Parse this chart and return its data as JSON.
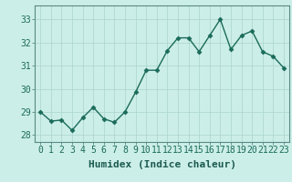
{
  "x": [
    0,
    1,
    2,
    3,
    4,
    5,
    6,
    7,
    8,
    9,
    10,
    11,
    12,
    13,
    14,
    15,
    16,
    17,
    18,
    19,
    20,
    21,
    22,
    23
  ],
  "y": [
    29.0,
    28.6,
    28.65,
    28.2,
    28.75,
    29.2,
    28.7,
    28.55,
    29.0,
    29.85,
    30.8,
    30.8,
    31.65,
    32.2,
    32.2,
    31.6,
    32.3,
    33.0,
    31.7,
    32.3,
    32.5,
    31.6,
    31.4,
    30.9
  ],
  "line_color": "#1a6b5a",
  "marker": "D",
  "marker_size": 2.5,
  "bg_color": "#cceee8",
  "plot_bg_color": "#cceee8",
  "grid_color": "#aad4ce",
  "xlabel": "Humidex (Indice chaleur)",
  "xlabel_fontsize": 8,
  "tick_fontsize": 7,
  "ylim": [
    27.7,
    33.6
  ],
  "yticks": [
    28,
    29,
    30,
    31,
    32,
    33
  ],
  "xticks": [
    0,
    1,
    2,
    3,
    4,
    5,
    6,
    7,
    8,
    9,
    10,
    11,
    12,
    13,
    14,
    15,
    16,
    17,
    18,
    19,
    20,
    21,
    22,
    23
  ],
  "line_width": 1.0,
  "spine_color": "#5a8a84",
  "tick_color": "#1a6b5a",
  "label_color": "#1a5a50"
}
